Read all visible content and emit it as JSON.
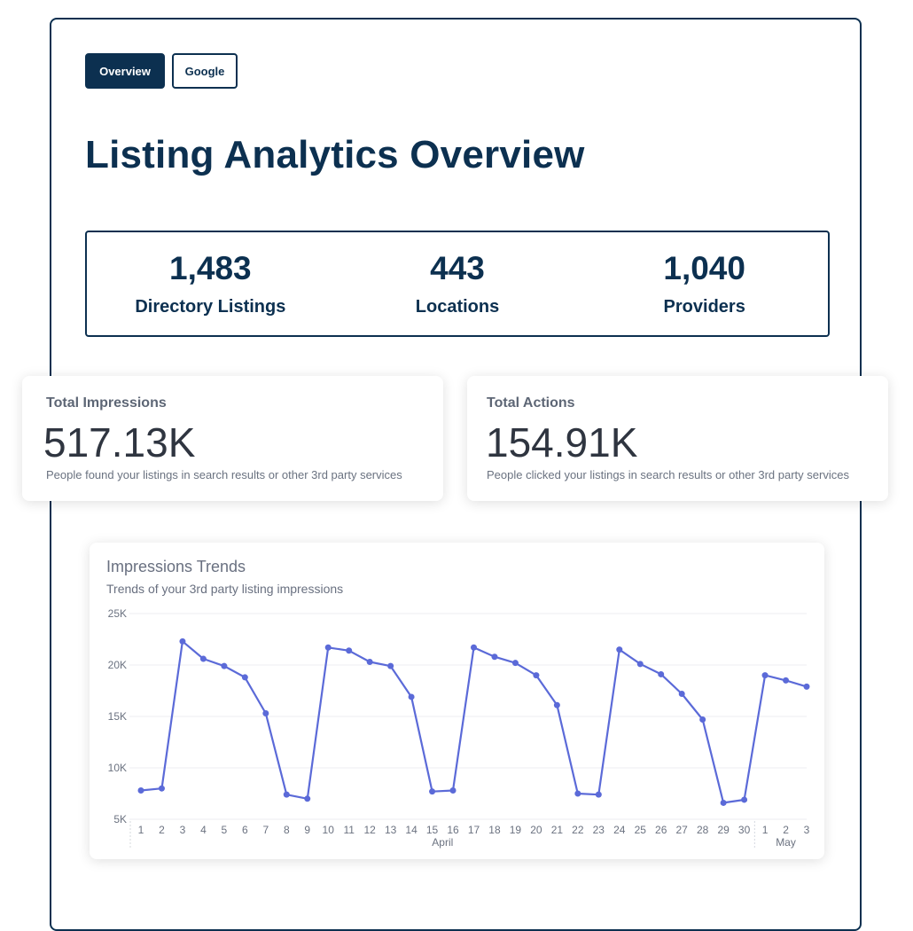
{
  "tabs": [
    {
      "label": "Overview",
      "active": true
    },
    {
      "label": "Google",
      "active": false
    }
  ],
  "page_title": "Listing Analytics Overview",
  "stats": [
    {
      "value": "1,483",
      "label": "Directory Listings"
    },
    {
      "value": "443",
      "label": "Locations"
    },
    {
      "value": "1,040",
      "label": "Providers"
    }
  ],
  "impressions_card": {
    "title": "Total Impressions",
    "value": "517.13K",
    "description": "People found your listings in search results or other 3rd party services"
  },
  "actions_card": {
    "title": "Total Actions",
    "value": "154.91K",
    "description": "People clicked your listings in search results or other 3rd party services"
  },
  "colors": {
    "brand": "#0c3050",
    "series": "#5b6ad8"
  },
  "chart_data": {
    "type": "line",
    "title": "Impressions Trends",
    "subtitle": "Trends of your 3rd party listing impressions",
    "x": [
      "1",
      "2",
      "3",
      "4",
      "5",
      "6",
      "7",
      "8",
      "9",
      "10",
      "11",
      "12",
      "13",
      "14",
      "15",
      "16",
      "17",
      "18",
      "19",
      "20",
      "21",
      "22",
      "23",
      "24",
      "25",
      "26",
      "27",
      "28",
      "29",
      "30",
      "1",
      "2",
      "3"
    ],
    "month_labels": [
      {
        "label": "April",
        "from": 0,
        "to": 29
      },
      {
        "label": "May",
        "from": 30,
        "to": 32
      }
    ],
    "series": [
      {
        "values": [
          7800,
          8000,
          22300,
          20600,
          19900,
          18800,
          15300,
          7400,
          7000,
          21700,
          21400,
          20300,
          19900,
          16900,
          7700,
          7800,
          21700,
          20800,
          20200,
          19000,
          16100,
          7500,
          7400,
          21500,
          20100,
          19100,
          17200,
          14700,
          6600,
          6900,
          19000,
          18500,
          17900
        ]
      }
    ],
    "yticks": [
      "5K",
      "10K",
      "15K",
      "20K",
      "25K"
    ],
    "ylim": [
      5000,
      25000
    ],
    "grid": true
  }
}
